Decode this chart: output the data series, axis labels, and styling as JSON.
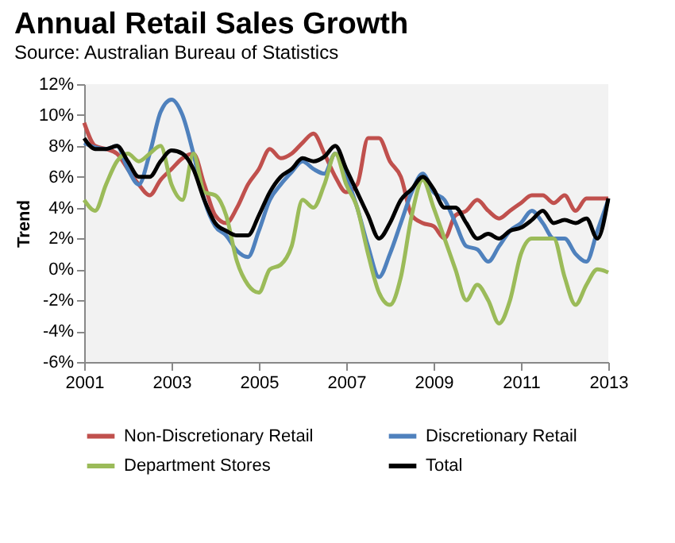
{
  "chart_data": {
    "type": "line",
    "title": "Annual Retail Sales Growth",
    "subtitle": "Source: Australian Bureau of Statistics",
    "ylabel": "Trend",
    "x": [
      2001,
      2001.25,
      2001.5,
      2001.75,
      2002,
      2002.25,
      2002.5,
      2002.75,
      2003,
      2003.25,
      2003.5,
      2003.75,
      2004,
      2004.25,
      2004.5,
      2004.75,
      2005,
      2005.25,
      2005.5,
      2005.75,
      2006,
      2006.25,
      2006.5,
      2006.75,
      2007,
      2007.25,
      2007.5,
      2007.75,
      2008,
      2008.25,
      2008.5,
      2008.75,
      2009,
      2009.25,
      2009.5,
      2009.75,
      2010,
      2010.25,
      2010.5,
      2010.75,
      2011,
      2011.25,
      2011.5,
      2011.75,
      2012,
      2012.25,
      2012.5,
      2012.75,
      2013
    ],
    "series": [
      {
        "name": "Non-Discretionary Retail",
        "color": "#c0504d",
        "values": [
          9.5,
          8,
          7.8,
          7.5,
          6.5,
          5.5,
          4.8,
          5.8,
          6.5,
          7.2,
          7.5,
          5.5,
          3.5,
          3.0,
          4.0,
          5.5,
          6.5,
          7.8,
          7.2,
          7.5,
          8.2,
          8.8,
          7.5,
          6.0,
          5.0,
          5.5,
          8.5,
          8.5,
          7.0,
          6.0,
          3.5,
          3.0,
          2.8,
          2.0,
          3.5,
          3.8,
          4.5,
          3.8,
          3.3,
          3.8,
          4.3,
          4.8,
          4.8,
          4.3,
          4.8,
          3.8,
          4.6,
          4.6,
          4.6
        ]
      },
      {
        "name": "Discretionary Retail",
        "color": "#4f81bd",
        "values": [
          8.2,
          7.9,
          7.8,
          8.0,
          6.5,
          5.5,
          7.5,
          10.2,
          11.0,
          10.0,
          7.5,
          4.5,
          2.8,
          2.2,
          1.2,
          0.8,
          2.5,
          4.5,
          5.5,
          6.3,
          7.0,
          6.5,
          6.2,
          7.5,
          6.0,
          4.0,
          1.5,
          -0.5,
          1.0,
          3.0,
          5.0,
          6.2,
          5.0,
          4.5,
          3.0,
          1.5,
          1.3,
          0.5,
          1.5,
          2.5,
          3.0,
          3.8,
          3.0,
          2.0,
          2.0,
          1.0,
          0.5,
          2.5,
          4.5
        ]
      },
      {
        "name": "Department Stores",
        "color": "#9bbb59",
        "values": [
          4.5,
          3.8,
          5.5,
          7.0,
          7.5,
          7.0,
          7.5,
          8.0,
          5.5,
          4.5,
          7.5,
          5.0,
          4.8,
          3.5,
          0.5,
          -1.0,
          -1.5,
          0.0,
          0.3,
          1.5,
          4.5,
          4.0,
          5.5,
          7.5,
          5.5,
          4.0,
          1.0,
          -1.5,
          -2.3,
          -0.5,
          3.5,
          5.8,
          4.0,
          2.0,
          0.0,
          -2.0,
          -1.0,
          -2.0,
          -3.5,
          -2.0,
          1.0,
          2.0,
          2.0,
          2.0,
          -0.5,
          -2.3,
          -1.0,
          0.0,
          -0.2
        ]
      },
      {
        "name": "Total",
        "color": "#000000",
        "values": [
          8.5,
          7.8,
          7.8,
          8.0,
          7.0,
          6.0,
          6.0,
          7.0,
          7.7,
          7.5,
          6.5,
          4.5,
          3.0,
          2.5,
          2.2,
          2.2,
          3.5,
          5.0,
          6.0,
          6.5,
          7.2,
          7.0,
          7.3,
          8.0,
          6.5,
          5.0,
          3.5,
          2.0,
          3.0,
          4.5,
          5.2,
          6.0,
          5.2,
          4.0,
          4.0,
          3.0,
          2.0,
          2.3,
          2.0,
          2.5,
          2.7,
          3.2,
          3.8,
          3.0,
          3.2,
          3.0,
          3.3,
          2.0,
          4.6
        ]
      }
    ],
    "xlim": [
      2001,
      2013
    ],
    "xticks": [
      2001,
      2003,
      2005,
      2007,
      2009,
      2011,
      2013
    ],
    "ylim": [
      -6,
      12
    ],
    "yticks": [
      {
        "value": -6,
        "label": "-6%"
      },
      {
        "value": -4,
        "label": "-4%"
      },
      {
        "value": -2,
        "label": "-2%"
      },
      {
        "value": 0,
        "label": "0%"
      },
      {
        "value": 2,
        "label": "2%"
      },
      {
        "value": 4,
        "label": "4%"
      },
      {
        "value": 6,
        "label": "6%"
      },
      {
        "value": 8,
        "label": "8%"
      },
      {
        "value": 10,
        "label": "10%"
      },
      {
        "value": 12,
        "label": "12%"
      }
    ],
    "grid": false,
    "legend": "bottom",
    "marker": "none",
    "line_style": "solid"
  }
}
